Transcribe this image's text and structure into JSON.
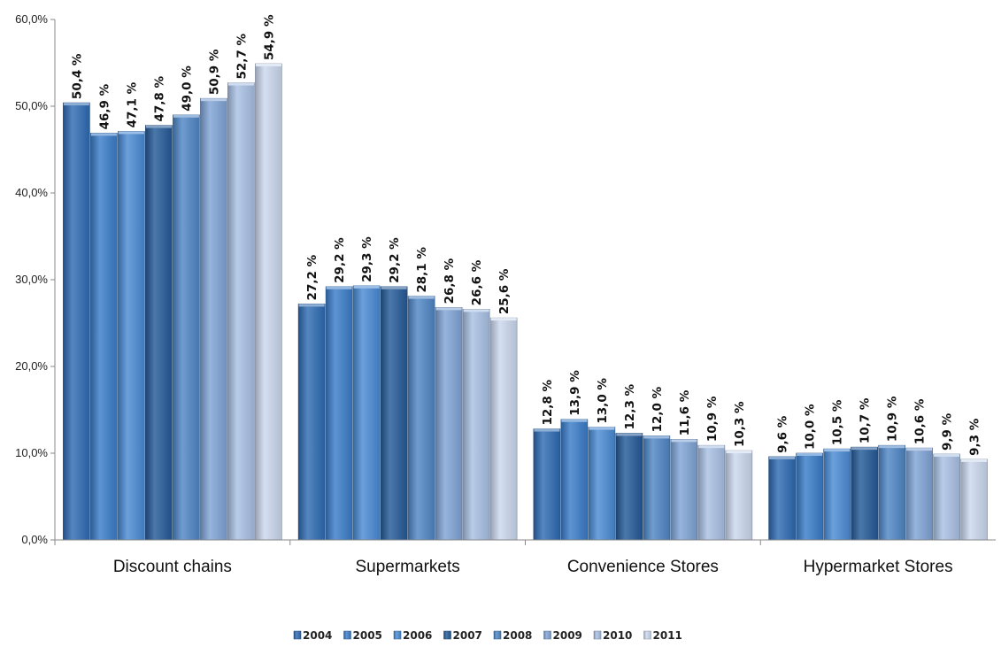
{
  "chart_data": {
    "type": "bar",
    "title": "",
    "xlabel": "",
    "ylabel": "",
    "ylim": [
      0,
      60
    ],
    "yticks": [
      "0,0%",
      "10,0%",
      "20,0%",
      "30,0%",
      "40,0%",
      "50,0%",
      "60,0%"
    ],
    "categories": [
      "Discount chains",
      "Supermarkets",
      "Convenience Stores",
      "Hypermarket Stores"
    ],
    "legend_position": "bottom",
    "series": [
      {
        "name": "2004",
        "color": "#2e6bb3",
        "values": [
          50.4,
          27.2,
          12.8,
          9.6
        ],
        "labels": [
          "50,4 %",
          "27,2 %",
          "12,8 %",
          "9,6 %"
        ]
      },
      {
        "name": "2005",
        "color": "#3a7dc9",
        "values": [
          46.9,
          29.2,
          13.9,
          10.0
        ],
        "labels": [
          "46,9 %",
          "29,2 %",
          "13,9 %",
          "10,0 %"
        ]
      },
      {
        "name": "2006",
        "color": "#4a8bd4",
        "values": [
          47.1,
          29.3,
          13.0,
          10.5
        ],
        "labels": [
          "47,1 %",
          "29,3 %",
          "13,0 %",
          "10,5 %"
        ]
      },
      {
        "name": "2007",
        "color": "#245a98",
        "values": [
          47.8,
          29.2,
          12.3,
          10.7
        ],
        "labels": [
          "47,8 %",
          "29,2 %",
          "12,3 %",
          "10,7 %"
        ]
      },
      {
        "name": "2008",
        "color": "#4f86c6",
        "values": [
          49.0,
          28.1,
          12.0,
          10.9
        ],
        "labels": [
          "49,0 %",
          "28,1 %",
          "12,0 %",
          "10,9 %"
        ]
      },
      {
        "name": "2009",
        "color": "#7fa4d6",
        "values": [
          50.9,
          26.8,
          11.6,
          10.6
        ],
        "labels": [
          "50,9 %",
          "26,8 %",
          "11,6 %",
          "10,6 %"
        ]
      },
      {
        "name": "2010",
        "color": "#a9c1e4",
        "values": [
          52.7,
          26.6,
          10.9,
          9.9
        ],
        "labels": [
          "52,7 %",
          "26,6 %",
          "10,9 %",
          "9,9 %"
        ]
      },
      {
        "name": "2011",
        "color": "#cad8ee",
        "values": [
          54.9,
          25.6,
          10.3,
          9.3
        ],
        "labels": [
          "54,9 %",
          "25,6 %",
          "10,3 %",
          "9,3 %"
        ]
      }
    ]
  }
}
